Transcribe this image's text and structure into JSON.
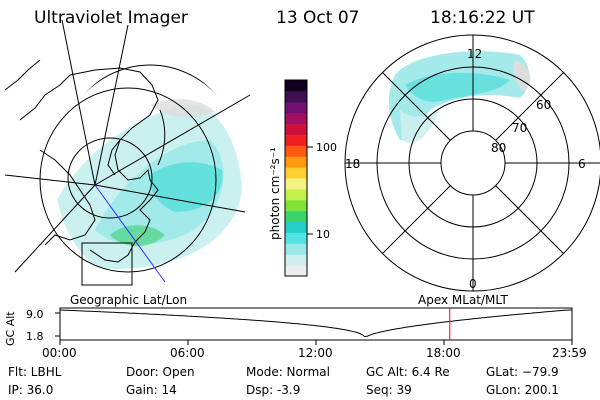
{
  "header": {
    "instrument": "Ultraviolet Imager",
    "date": "13 Oct 07",
    "time": "18:16:22 UT"
  },
  "geographic_panel": {
    "label": "Geographic Lat/Lon"
  },
  "polar_panel": {
    "label": "Apex MLat/MLT",
    "mlt_labels": {
      "top": "12",
      "left": "18",
      "right": "6",
      "bottom": "0"
    },
    "lat_labels": [
      "60",
      "70",
      "80"
    ]
  },
  "colorbar": {
    "unit": "photon cm⁻²s⁻¹",
    "ticks": [
      "100",
      "10"
    ],
    "colors": [
      "#eeeeee",
      "#cfeeee",
      "#9be8e8",
      "#55e2e2",
      "#22d0c8",
      "#3cd26e",
      "#7ee43a",
      "#c4f048",
      "#f4f280",
      "#ffd030",
      "#ff9a10",
      "#ff5a10",
      "#f02020",
      "#cc1040",
      "#a01060",
      "#701070",
      "#401050",
      "#100020"
    ]
  },
  "altitude_plot": {
    "ylabel": "GC Alt",
    "y_ticks": [
      "9.0",
      "1.8"
    ],
    "x_ticks": [
      "00:00",
      "06:00",
      "12:00",
      "18:00",
      "23:59"
    ],
    "current_time_hours": 18.27,
    "marker_color": "#ff0000"
  },
  "status": {
    "filter": "Flt: LBHL",
    "ip": "IP: 36.0",
    "door": "Door: Open",
    "gain": "Gain: 14",
    "mode": "Mode: Normal",
    "dsp": "Dsp:    -3.9",
    "gc_alt": "GC Alt: 6.4 Re",
    "seq": "Seq: 39",
    "glat": "GLat: −79.9",
    "glon": "GLon: 200.1"
  }
}
